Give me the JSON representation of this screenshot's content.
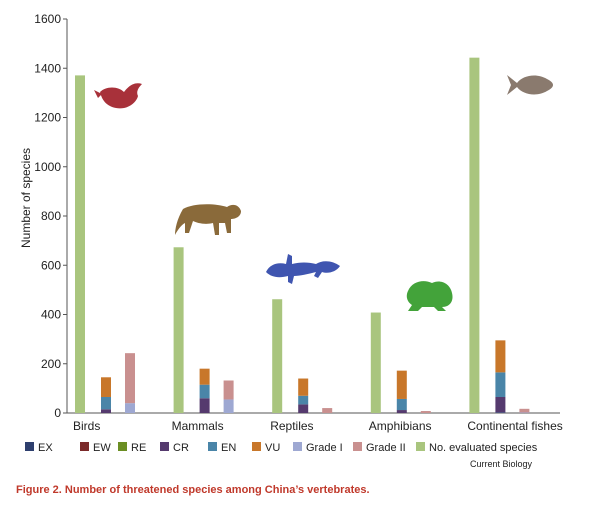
{
  "chart_data": {
    "type": "bar",
    "ylabel": "Number of species",
    "ylim": [
      0,
      1600
    ],
    "yticks": [
      0,
      200,
      400,
      600,
      800,
      1000,
      1200,
      1400,
      1600
    ],
    "categories": [
      "Birds",
      "Mammals",
      "Reptiles",
      "Amphibians",
      "Continental fishes"
    ],
    "stacks": {
      "red_list": [
        "EX",
        "EW",
        "RE",
        "CR",
        "EN",
        "VU"
      ],
      "protection_grade": [
        "Grade I",
        "Grade II"
      ]
    },
    "series": [
      {
        "name": "EX",
        "key": "ex",
        "color": "#2e3f6e",
        "values": [
          0,
          0,
          0,
          0,
          3
        ]
      },
      {
        "name": "EW",
        "key": "ew",
        "color": "#7b2a2a",
        "values": [
          0,
          0,
          0,
          0,
          0
        ]
      },
      {
        "name": "RE",
        "key": "re",
        "color": "#6b8e23",
        "values": [
          0,
          0,
          0,
          0,
          0
        ]
      },
      {
        "name": "CR",
        "key": "cr",
        "color": "#553a6e",
        "values": [
          15,
          60,
          35,
          12,
          62
        ]
      },
      {
        "name": "EN",
        "key": "en",
        "color": "#4a85a8",
        "values": [
          50,
          55,
          35,
          45,
          100
        ]
      },
      {
        "name": "VU",
        "key": "vu",
        "color": "#c8772a",
        "values": [
          80,
          65,
          70,
          115,
          130
        ]
      },
      {
        "name": "Grade I",
        "key": "g1",
        "color": "#9ea8d2",
        "values": [
          40,
          55,
          0,
          0,
          2
        ]
      },
      {
        "name": "Grade II",
        "key": "g2",
        "color": "#c9908f",
        "values": [
          203,
          77,
          20,
          8,
          15
        ]
      },
      {
        "name": "No. evaluated species",
        "key": "evaluated",
        "color": "#a9c57e",
        "values": [
          1371,
          673,
          462,
          408,
          1443
        ]
      }
    ]
  },
  "legend": [
    {
      "label": "EX",
      "color": "#2e3f6e"
    },
    {
      "label": "EW",
      "color": "#7b2a2a"
    },
    {
      "label": "RE",
      "color": "#6b8e23"
    },
    {
      "label": "CR",
      "color": "#553a6e"
    },
    {
      "label": "EN",
      "color": "#4a85a8"
    },
    {
      "label": "VU",
      "color": "#c8772a"
    },
    {
      "label": "Grade I",
      "color": "#9ea8d2"
    },
    {
      "label": "Grade II",
      "color": "#c9908f"
    },
    {
      "label": "No. evaluated species",
      "color": "#a9c57e"
    }
  ],
  "icons": [
    {
      "name": "bird-icon",
      "color": "#a8313a"
    },
    {
      "name": "tiger-icon",
      "color": "#8a6a3a"
    },
    {
      "name": "lizard-icon",
      "color": "#3f55b0"
    },
    {
      "name": "frog-icon",
      "color": "#43a33a"
    },
    {
      "name": "fish-icon",
      "color": "#8a7a6e"
    }
  ],
  "credit": "Current Biology",
  "caption": "Figure 2. Number of threatened species among China’s vertebrates."
}
